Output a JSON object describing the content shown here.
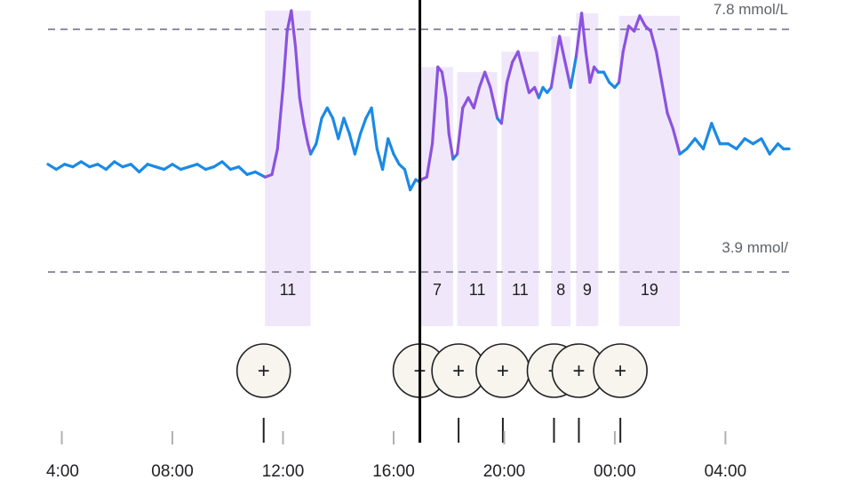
{
  "chart_data": {
    "type": "line",
    "title": "",
    "xlabel": "",
    "ylabel": "",
    "x_unit": "hours (day 1 clock time; values above 24 continue into next day)",
    "xlim": [
      3.5,
      30.3
    ],
    "ylim": [
      3.0,
      8.0
    ],
    "x_tick_labels": [
      "4:00",
      "08:00",
      "12:00",
      "16:00",
      "20:00",
      "00:00",
      "04:00"
    ],
    "x_tick_hours": [
      4,
      8,
      12,
      16,
      20,
      24,
      28
    ],
    "reference_lines": [
      {
        "label": "7.8 mmol/L",
        "value": 7.8
      },
      {
        "label": "3.9 mmol/",
        "value": 3.9
      }
    ],
    "current_time_hours": 16.95,
    "colors": {
      "in_range": "#1a8ae6",
      "post_meal": "#8b52e0",
      "meal_band": "#f0e8fa",
      "reference": "#6b6b80",
      "cursor": "#000000"
    },
    "meal_windows": [
      {
        "label": "11",
        "start": 11.35,
        "end": 13.0
      },
      {
        "label": "7",
        "start": 17.0,
        "end": 18.15
      },
      {
        "label": "11",
        "start": 18.3,
        "end": 19.75
      },
      {
        "label": "11",
        "start": 19.9,
        "end": 21.25
      },
      {
        "label": "8",
        "start": 21.7,
        "end": 22.4
      },
      {
        "label": "9",
        "start": 22.6,
        "end": 23.4
      },
      {
        "label": "19",
        "start": 24.15,
        "end": 26.35
      }
    ],
    "meal_markers": [
      {
        "symbol": "+",
        "time_hours": 11.3
      },
      {
        "symbol": "+",
        "time_hours": 16.95
      },
      {
        "symbol": "+",
        "time_hours": 18.35
      },
      {
        "symbol": "+",
        "time_hours": 19.95
      },
      {
        "symbol": "+",
        "time_hours": 21.8
      },
      {
        "symbol": "+",
        "time_hours": 22.7
      },
      {
        "symbol": "+",
        "time_hours": 24.2
      }
    ],
    "series": [
      {
        "points": [
          [
            3.5,
            5.0
          ],
          [
            3.8,
            4.9
          ],
          [
            4.1,
            5.0
          ],
          [
            4.4,
            4.95
          ],
          [
            4.7,
            5.05
          ],
          [
            5.0,
            4.95
          ],
          [
            5.3,
            5.0
          ],
          [
            5.6,
            4.9
          ],
          [
            5.9,
            5.05
          ],
          [
            6.2,
            4.95
          ],
          [
            6.5,
            5.0
          ],
          [
            6.8,
            4.85
          ],
          [
            7.1,
            5.0
          ],
          [
            7.4,
            4.95
          ],
          [
            7.7,
            4.9
          ],
          [
            8.0,
            5.0
          ],
          [
            8.3,
            4.9
          ],
          [
            8.6,
            4.95
          ],
          [
            8.9,
            5.0
          ],
          [
            9.2,
            4.9
          ],
          [
            9.5,
            4.95
          ],
          [
            9.8,
            5.05
          ],
          [
            10.1,
            4.9
          ],
          [
            10.4,
            4.95
          ],
          [
            10.7,
            4.8
          ],
          [
            11.0,
            4.85
          ],
          [
            11.35,
            4.75
          ],
          [
            11.6,
            4.8
          ],
          [
            11.8,
            5.3
          ],
          [
            12.0,
            6.5
          ],
          [
            12.15,
            7.6
          ],
          [
            12.3,
            8.0
          ],
          [
            12.45,
            7.3
          ],
          [
            12.6,
            6.3
          ],
          [
            12.75,
            5.8
          ],
          [
            12.9,
            5.4
          ],
          [
            13.0,
            5.2
          ],
          [
            13.2,
            5.4
          ],
          [
            13.4,
            5.9
          ],
          [
            13.6,
            6.1
          ],
          [
            13.8,
            5.9
          ],
          [
            14.0,
            5.5
          ],
          [
            14.2,
            5.9
          ],
          [
            14.4,
            5.6
          ],
          [
            14.6,
            5.2
          ],
          [
            14.8,
            5.6
          ],
          [
            15.0,
            5.9
          ],
          [
            15.2,
            6.1
          ],
          [
            15.4,
            5.3
          ],
          [
            15.6,
            4.9
          ],
          [
            15.8,
            5.5
          ],
          [
            16.0,
            5.2
          ],
          [
            16.2,
            5.0
          ],
          [
            16.4,
            4.9
          ],
          [
            16.6,
            4.5
          ],
          [
            16.8,
            4.7
          ],
          [
            16.95,
            4.65
          ],
          [
            17.0,
            4.7
          ],
          [
            17.2,
            4.75
          ],
          [
            17.4,
            5.4
          ],
          [
            17.6,
            6.9
          ],
          [
            17.75,
            6.8
          ],
          [
            17.9,
            6.3
          ],
          [
            18.0,
            5.6
          ],
          [
            18.15,
            5.1
          ],
          [
            18.3,
            5.2
          ],
          [
            18.5,
            6.1
          ],
          [
            18.7,
            6.3
          ],
          [
            18.9,
            6.1
          ],
          [
            19.1,
            6.5
          ],
          [
            19.3,
            6.8
          ],
          [
            19.5,
            6.5
          ],
          [
            19.75,
            5.9
          ],
          [
            19.9,
            5.8
          ],
          [
            20.1,
            6.6
          ],
          [
            20.3,
            7.0
          ],
          [
            20.5,
            7.2
          ],
          [
            20.7,
            6.8
          ],
          [
            20.9,
            6.4
          ],
          [
            21.1,
            6.5
          ],
          [
            21.25,
            6.3
          ],
          [
            21.4,
            6.5
          ],
          [
            21.55,
            6.4
          ],
          [
            21.7,
            6.5
          ],
          [
            21.85,
            7.0
          ],
          [
            22.0,
            7.5
          ],
          [
            22.2,
            7.0
          ],
          [
            22.4,
            6.5
          ],
          [
            22.6,
            7.1
          ],
          [
            22.8,
            7.95
          ],
          [
            22.95,
            7.2
          ],
          [
            23.1,
            6.6
          ],
          [
            23.25,
            6.9
          ],
          [
            23.4,
            6.8
          ],
          [
            23.6,
            6.8
          ],
          [
            23.8,
            6.6
          ],
          [
            24.0,
            6.5
          ],
          [
            24.15,
            6.6
          ],
          [
            24.3,
            7.2
          ],
          [
            24.5,
            7.7
          ],
          [
            24.7,
            7.6
          ],
          [
            24.9,
            7.9
          ],
          [
            25.1,
            7.7
          ],
          [
            25.3,
            7.6
          ],
          [
            25.5,
            7.2
          ],
          [
            25.7,
            6.6
          ],
          [
            25.9,
            6.0
          ],
          [
            26.1,
            5.7
          ],
          [
            26.35,
            5.2
          ],
          [
            26.6,
            5.3
          ],
          [
            26.9,
            5.5
          ],
          [
            27.2,
            5.3
          ],
          [
            27.5,
            5.8
          ],
          [
            27.8,
            5.4
          ],
          [
            28.1,
            5.4
          ],
          [
            28.4,
            5.3
          ],
          [
            28.7,
            5.5
          ],
          [
            29.0,
            5.4
          ],
          [
            29.3,
            5.5
          ],
          [
            29.6,
            5.2
          ],
          [
            29.9,
            5.4
          ],
          [
            30.1,
            5.3
          ],
          [
            30.3,
            5.3
          ]
        ]
      }
    ]
  }
}
